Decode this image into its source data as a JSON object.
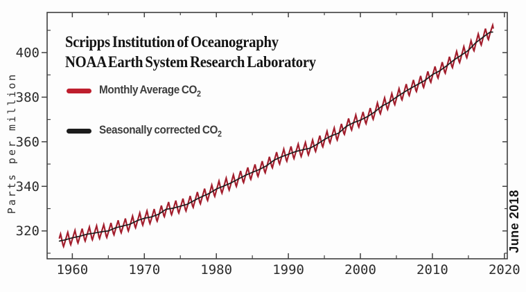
{
  "header": {
    "title_line1": "Scripps Institution of Oceanography",
    "title_line2": "NOAA Earth System Research Laboratory"
  },
  "legend": {
    "monthly": {
      "label": "Monthly Average CO",
      "subscript": "2",
      "swatch_color": "#be1e2d"
    },
    "seasonal": {
      "label": "Seasonally corrected CO",
      "subscript": "2",
      "swatch_color": "#1c1c1c"
    }
  },
  "annotations": {
    "date_note": "June 2018"
  },
  "axes": {
    "y_label": "Parts per million"
  },
  "colors": {
    "monthly_line": "#a31e2d",
    "seasonal_line": "#1c1c1c",
    "frame": "#3f3f3f",
    "tick_text": "#2c2c2c"
  },
  "chart_data": {
    "type": "line",
    "title": "Scripps Institution of Oceanography / NOAA Earth System Research Laboratory",
    "xlabel": "",
    "ylabel": "Parts per million",
    "xlim": [
      1956.5,
      2020.4
    ],
    "ylim": [
      307.5,
      418.0
    ],
    "grid": false,
    "legend_position": "upper-left",
    "x_major_ticks": [
      1960,
      1970,
      1980,
      1990,
      2000,
      2010,
      2020
    ],
    "x_minor_ticks": [
      1965,
      1975,
      1985,
      1995,
      2005,
      2015
    ],
    "y_major_ticks": [
      320,
      340,
      360,
      380,
      400
    ],
    "y_minor_ticks": [
      310,
      330,
      350,
      370,
      390,
      410
    ],
    "x_start": 1958.2,
    "x_end": 2018.45,
    "seasonal_amplitude_ppm": 3.1,
    "seasonal_peak_year_fraction": 0.37,
    "seasonal_trough_year_fraction": 0.76,
    "series": [
      {
        "name": "Monthly Average CO2",
        "kind": "trend_plus_seasonal_cycle"
      },
      {
        "name": "Seasonally corrected CO2",
        "kind": "trend"
      }
    ],
    "years": [
      1958,
      1959,
      1960,
      1961,
      1962,
      1963,
      1964,
      1965,
      1966,
      1967,
      1968,
      1969,
      1970,
      1971,
      1972,
      1973,
      1974,
      1975,
      1976,
      1977,
      1978,
      1979,
      1980,
      1981,
      1982,
      1983,
      1984,
      1985,
      1986,
      1987,
      1988,
      1989,
      1990,
      1991,
      1992,
      1993,
      1994,
      1995,
      1996,
      1997,
      1998,
      1999,
      2000,
      2001,
      2002,
      2003,
      2004,
      2005,
      2006,
      2007,
      2008,
      2009,
      2010,
      2011,
      2012,
      2013,
      2014,
      2015,
      2016,
      2017,
      2018
    ],
    "co2_ppm": [
      315.3,
      316.0,
      316.9,
      317.6,
      318.5,
      319.0,
      319.6,
      320.0,
      321.4,
      322.2,
      323.0,
      324.6,
      325.7,
      326.3,
      327.5,
      329.7,
      330.2,
      331.1,
      332.0,
      333.8,
      335.4,
      336.8,
      338.8,
      340.1,
      341.5,
      343.2,
      344.9,
      346.3,
      347.6,
      349.3,
      351.7,
      353.2,
      354.4,
      355.6,
      356.4,
      357.1,
      358.9,
      361.0,
      362.7,
      363.9,
      366.8,
      368.5,
      369.7,
      371.3,
      373.4,
      376.0,
      377.7,
      380.0,
      382.1,
      384.0,
      385.8,
      387.6,
      390.1,
      391.8,
      394.1,
      396.7,
      398.8,
      401.0,
      404.4,
      406.8,
      409.2
    ]
  }
}
